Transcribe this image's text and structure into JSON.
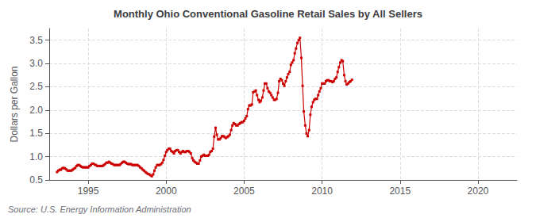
{
  "chart_data": {
    "type": "line",
    "title": "Monthly Ohio Conventional Gasoline Retail Sales by All Sellers",
    "ylabel": "Dollars per Gallon",
    "source": "Source: U.S. Energy Information Administration",
    "color": "#CC0000",
    "marker": "square",
    "grid": true,
    "xlim": [
      1992.5,
      2022.5
    ],
    "xticks": [
      1995,
      2000,
      2005,
      2010,
      2015,
      2020
    ],
    "ylim": [
      0.5,
      3.75
    ],
    "yticks": [
      0.5,
      {
        "value": 1.0,
        "label": "1.0"
      },
      1.5,
      {
        "value": 2.0,
        "label": "2.0"
      },
      2.5,
      {
        "value": 3.0,
        "label": "3.0"
      },
      3.5
    ],
    "x": [
      1993.0,
      1993.08,
      1993.17,
      1993.25,
      1993.33,
      1993.42,
      1993.5,
      1993.58,
      1993.67,
      1993.75,
      1993.83,
      1993.92,
      1994.0,
      1994.08,
      1994.17,
      1994.25,
      1994.33,
      1994.42,
      1994.5,
      1994.58,
      1994.67,
      1994.75,
      1994.83,
      1994.92,
      1995.0,
      1995.08,
      1995.17,
      1995.25,
      1995.33,
      1995.42,
      1995.5,
      1995.58,
      1995.67,
      1995.75,
      1995.83,
      1995.92,
      1996.0,
      1996.08,
      1996.17,
      1996.25,
      1996.33,
      1996.42,
      1996.5,
      1996.58,
      1996.67,
      1996.75,
      1996.83,
      1996.92,
      1997.0,
      1997.08,
      1997.17,
      1997.25,
      1997.33,
      1997.42,
      1997.5,
      1997.58,
      1997.67,
      1997.75,
      1997.83,
      1997.92,
      1998.0,
      1998.08,
      1998.17,
      1998.25,
      1998.33,
      1998.42,
      1998.5,
      1998.58,
      1998.67,
      1998.75,
      1998.83,
      1998.92,
      1999.0,
      1999.08,
      1999.17,
      1999.25,
      1999.33,
      1999.42,
      1999.5,
      1999.58,
      1999.67,
      1999.75,
      1999.83,
      1999.92,
      2000.0,
      2000.08,
      2000.17,
      2000.25,
      2000.33,
      2000.42,
      2000.5,
      2000.58,
      2000.67,
      2000.75,
      2000.83,
      2000.92,
      2001.0,
      2001.08,
      2001.17,
      2001.25,
      2001.33,
      2001.42,
      2001.5,
      2001.58,
      2001.67,
      2001.75,
      2001.83,
      2001.92,
      2002.0,
      2002.08,
      2002.17,
      2002.25,
      2002.33,
      2002.42,
      2002.5,
      2002.58,
      2002.67,
      2002.75,
      2002.83,
      2002.92,
      2003.0,
      2003.08,
      2003.17,
      2003.25,
      2003.33,
      2003.42,
      2003.5,
      2003.58,
      2003.67,
      2003.75,
      2003.83,
      2003.92,
      2004.0,
      2004.08,
      2004.17,
      2004.25,
      2004.33,
      2004.42,
      2004.5,
      2004.58,
      2004.67,
      2004.75,
      2004.83,
      2004.92,
      2005.0,
      2005.08,
      2005.17,
      2005.25,
      2005.33,
      2005.42,
      2005.5,
      2005.58,
      2005.67,
      2005.75,
      2005.83,
      2005.92,
      2006.0,
      2006.08,
      2006.17,
      2006.25,
      2006.33,
      2006.42,
      2006.5,
      2006.58,
      2006.67,
      2006.75,
      2006.83,
      2006.92,
      2007.0,
      2007.08,
      2007.17,
      2007.25,
      2007.33,
      2007.42,
      2007.5,
      2007.58,
      2007.67,
      2007.75,
      2007.83,
      2007.92,
      2008.0,
      2008.08,
      2008.17,
      2008.25,
      2008.33,
      2008.42,
      2008.5,
      2008.58,
      2008.67,
      2008.75,
      2008.83,
      2008.92,
      2009.0,
      2009.08,
      2009.17,
      2009.25,
      2009.33,
      2009.42,
      2009.5,
      2009.58,
      2009.67,
      2009.75,
      2009.83,
      2009.92,
      2010.0,
      2010.08,
      2010.17,
      2010.25,
      2010.33,
      2010.42,
      2010.5,
      2010.58,
      2010.67,
      2010.75,
      2010.83,
      2010.92,
      2011.0,
      2011.08,
      2011.17,
      2011.25,
      2011.33,
      2011.42,
      2011.5,
      2011.58,
      2011.67,
      2011.75,
      2011.83,
      2011.92
    ],
    "values": [
      0.67,
      0.7,
      0.72,
      0.72,
      0.75,
      0.76,
      0.75,
      0.73,
      0.7,
      0.7,
      0.7,
      0.7,
      0.72,
      0.74,
      0.76,
      0.8,
      0.82,
      0.82,
      0.8,
      0.78,
      0.77,
      0.77,
      0.77,
      0.77,
      0.77,
      0.8,
      0.82,
      0.85,
      0.85,
      0.83,
      0.82,
      0.8,
      0.8,
      0.8,
      0.8,
      0.8,
      0.82,
      0.84,
      0.87,
      0.87,
      0.89,
      0.87,
      0.85,
      0.84,
      0.82,
      0.82,
      0.82,
      0.82,
      0.82,
      0.84,
      0.87,
      0.89,
      0.89,
      0.87,
      0.85,
      0.84,
      0.84,
      0.84,
      0.82,
      0.82,
      0.82,
      0.82,
      0.82,
      0.8,
      0.77,
      0.75,
      0.72,
      0.7,
      0.67,
      0.65,
      0.63,
      0.62,
      0.6,
      0.58,
      0.62,
      0.7,
      0.77,
      0.82,
      0.82,
      0.82,
      0.84,
      0.87,
      0.93,
      1.02,
      1.1,
      1.14,
      1.17,
      1.17,
      1.12,
      1.1,
      1.07,
      1.12,
      1.14,
      1.14,
      1.1,
      1.07,
      1.1,
      1.12,
      1.1,
      1.1,
      1.12,
      1.12,
      1.1,
      1.07,
      0.97,
      0.92,
      0.89,
      0.87,
      0.85,
      0.85,
      0.92,
      1.0,
      1.02,
      1.04,
      1.02,
      1.02,
      1.02,
      1.04,
      1.1,
      1.12,
      1.17,
      1.43,
      1.62,
      1.47,
      1.37,
      1.37,
      1.4,
      1.44,
      1.44,
      1.42,
      1.4,
      1.42,
      1.44,
      1.47,
      1.57,
      1.67,
      1.72,
      1.7,
      1.67,
      1.67,
      1.7,
      1.72,
      1.74,
      1.74,
      1.77,
      1.82,
      1.87,
      2.02,
      2.1,
      2.1,
      2.12,
      2.38,
      2.4,
      2.42,
      2.32,
      2.22,
      2.17,
      2.2,
      2.27,
      2.42,
      2.57,
      2.57,
      2.47,
      2.4,
      2.37,
      2.32,
      2.27,
      2.22,
      2.22,
      2.24,
      2.37,
      2.62,
      2.67,
      2.64,
      2.57,
      2.52,
      2.62,
      2.7,
      2.77,
      2.82,
      2.97,
      3.02,
      3.07,
      3.22,
      3.32,
      3.44,
      3.5,
      3.55,
      3.12,
      2.52,
      1.97,
      1.67,
      1.5,
      1.44,
      1.57,
      1.9,
      2.07,
      2.17,
      2.22,
      2.24,
      2.24,
      2.32,
      2.4,
      2.47,
      2.57,
      2.57,
      2.57,
      2.62,
      2.64,
      2.64,
      2.62,
      2.62,
      2.6,
      2.62,
      2.67,
      2.7,
      2.82,
      2.92,
      3.02,
      3.07,
      3.05,
      2.75,
      2.62,
      2.55,
      2.57,
      2.6,
      2.62,
      2.65
    ]
  }
}
